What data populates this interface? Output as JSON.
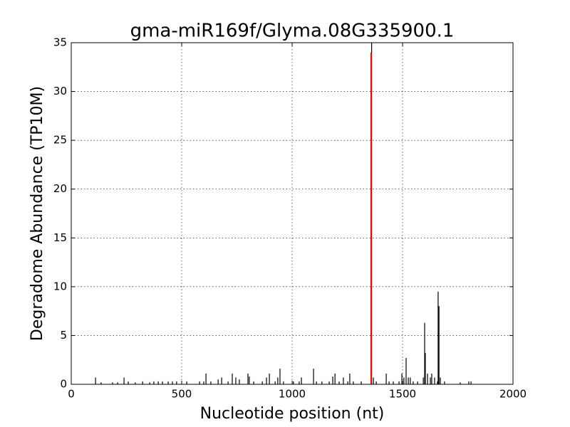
{
  "chart_data": {
    "type": "spike",
    "title": "gma-miR169f/Glyma.08G335900.1",
    "x_label": "Nucleotide position (nt)",
    "y_label": "Degradome Abundance (TP10M)",
    "xlim": [
      0,
      2000
    ],
    "xticks": [
      0,
      500,
      1000,
      1500,
      2000
    ],
    "ylim": [
      0,
      35
    ],
    "yticks": [
      0,
      5,
      10,
      15,
      20,
      25,
      30,
      35
    ],
    "grid": true,
    "color": "#000000",
    "x": [
      110,
      135,
      187,
      210,
      239,
      258,
      290,
      323,
      355,
      374,
      394,
      413,
      439,
      458,
      477,
      523,
      581,
      600,
      610,
      632,
      665,
      681,
      710,
      729,
      745,
      761,
      800,
      806,
      826,
      865,
      884,
      897,
      923,
      935,
      945,
      961,
      1006,
      1032,
      1042,
      1097,
      1110,
      1135,
      1168,
      1184,
      1194,
      1213,
      1232,
      1252,
      1261,
      1277,
      1313,
      1360,
      1368,
      1381,
      1426,
      1439,
      1458,
      1484,
      1497,
      1506,
      1516,
      1526,
      1535,
      1548,
      1568,
      1594,
      1600,
      1603,
      1613,
      1626,
      1632,
      1645,
      1658,
      1661,
      1665,
      1671,
      1690,
      1761,
      1800,
      1810
    ],
    "values": [
      0.7,
      0.2,
      0.2,
      0.2,
      0.7,
      0.3,
      0.2,
      0.3,
      0.2,
      0.3,
      0.3,
      0.3,
      0.3,
      0.3,
      0.3,
      0.3,
      0.3,
      0.3,
      1.1,
      0.3,
      0.5,
      0.7,
      0.3,
      1.1,
      0.7,
      0.5,
      1.1,
      0.8,
      0.3,
      0.3,
      0.7,
      1.1,
      0.3,
      0.7,
      1.6,
      0.3,
      0.3,
      0.3,
      0.7,
      1.6,
      0.3,
      0.3,
      0.3,
      0.8,
      1.1,
      0.3,
      0.7,
      0.3,
      1.1,
      0.3,
      0.3,
      35,
      0.7,
      0.3,
      1.1,
      0.3,
      0.3,
      0.3,
      1.1,
      0.7,
      2.7,
      0.7,
      0.7,
      0.3,
      0.3,
      0.7,
      6.3,
      3.2,
      1.1,
      0.7,
      1.1,
      0.7,
      0.3,
      9.5,
      8.0,
      0.7,
      0.3,
      0.2,
      0.3,
      0.3
    ],
    "highlight": {
      "x": 1358,
      "value": 34,
      "color": "#ff0000"
    }
  }
}
